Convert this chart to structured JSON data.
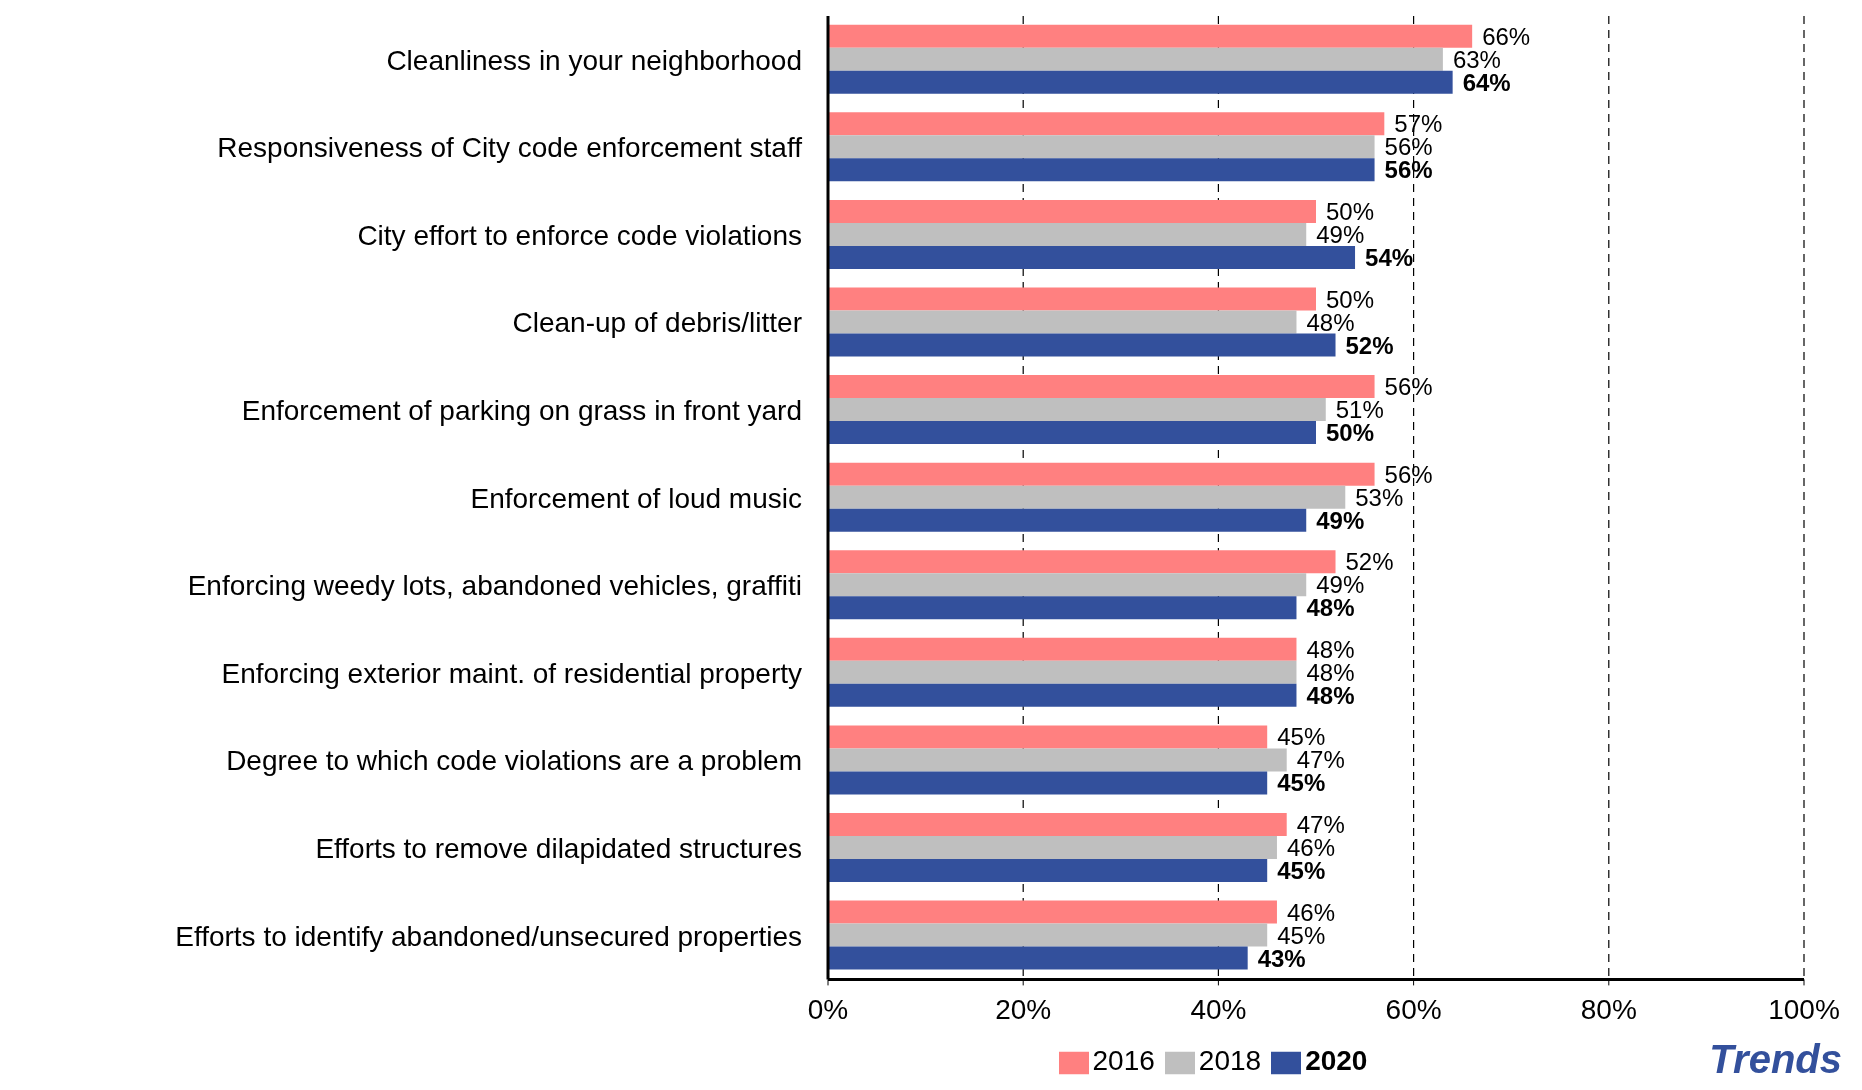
{
  "chart_data": {
    "type": "bar",
    "orientation": "horizontal",
    "categories": [
      "Cleanliness in your neighborhood",
      "Responsiveness of City code enforcement staff",
      "City effort to enforce code violations",
      "Clean-up of debris/litter",
      "Enforcement of parking on grass in front yard",
      "Enforcement of loud music",
      "Enforcing weedy lots, abandoned vehicles, graffiti",
      "Enforcing exterior maint. of residential property",
      "Degree to which code violations are a problem",
      "Efforts to remove dilapidated structures",
      "Efforts to identify abandoned/unsecured properties"
    ],
    "series": [
      {
        "name": "2016",
        "color": "#ff8080",
        "values": [
          66,
          57,
          50,
          50,
          56,
          56,
          52,
          48,
          45,
          47,
          46
        ],
        "value_labels": [
          "66%",
          "57%",
          "50%",
          "50%",
          "56%",
          "56%",
          "52%",
          "48%",
          "45%",
          "47%",
          "46%"
        ]
      },
      {
        "name": "2018",
        "color": "#bfbfbf",
        "values": [
          63,
          56,
          49,
          48,
          51,
          53,
          49,
          48,
          47,
          46,
          45
        ],
        "value_labels": [
          "63%",
          "56%",
          "49%",
          "48%",
          "51%",
          "53%",
          "49%",
          "48%",
          "47%",
          "46%",
          "45%"
        ]
      },
      {
        "name": "2020",
        "color": "#33509c",
        "values": [
          64,
          56,
          54,
          52,
          50,
          49,
          48,
          48,
          45,
          45,
          43
        ],
        "value_labels": [
          "64%",
          "56%",
          "54%",
          "52%",
          "50%",
          "49%",
          "48%",
          "48%",
          "45%",
          "45%",
          "43%"
        ]
      }
    ],
    "xlim": [
      0,
      100
    ],
    "xticks": [
      {
        "value": 0,
        "label": "0%"
      },
      {
        "value": 20,
        "label": "20%"
      },
      {
        "value": 40,
        "label": "40%"
      },
      {
        "value": 60,
        "label": "60%"
      },
      {
        "value": 80,
        "label": "80%"
      },
      {
        "value": 100,
        "label": "100%"
      }
    ],
    "grid": "x",
    "line_style": "dashed",
    "legend": "bottom",
    "annotations": [
      "Trends"
    ]
  }
}
